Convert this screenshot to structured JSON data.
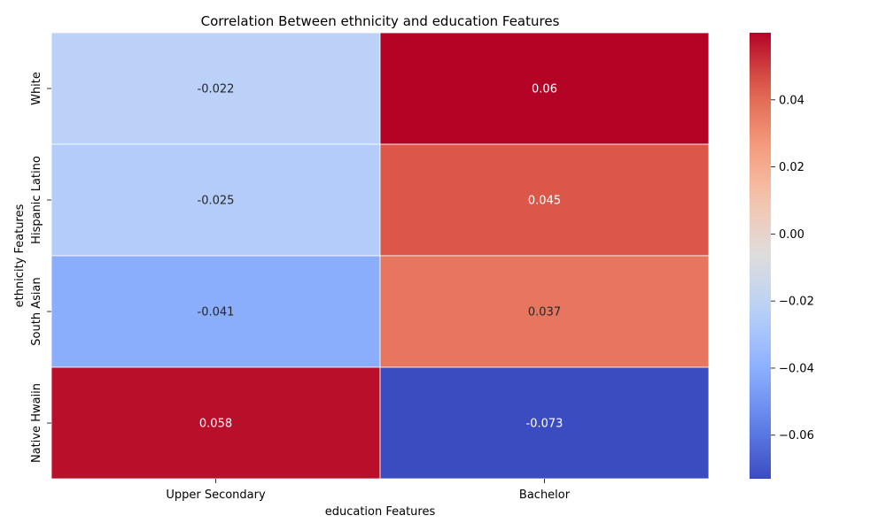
{
  "chart_data": {
    "type": "heatmap",
    "title": "Correlation Between ethnicity and education Features",
    "xlabel": "education Features",
    "ylabel": "ethnicity Features",
    "x_categories": [
      "Upper Secondary",
      "Bachelor"
    ],
    "y_categories": [
      "White",
      "Hispanic Latino",
      "South Asian",
      "Native Hwaiin"
    ],
    "values": [
      [
        -0.022,
        0.06
      ],
      [
        -0.025,
        0.045
      ],
      [
        -0.041,
        0.037
      ],
      [
        0.058,
        -0.073
      ]
    ],
    "value_labels": [
      [
        "-0.022",
        "0.06"
      ],
      [
        "-0.025",
        "0.045"
      ],
      [
        "-0.041",
        "0.037"
      ],
      [
        "0.058",
        "-0.073"
      ]
    ],
    "colormap": "coolwarm",
    "color_range": [
      -0.073,
      0.06
    ],
    "colorbar_ticks": [
      0.04,
      0.02,
      0.0,
      -0.02,
      -0.04,
      -0.06
    ],
    "colorbar_tick_labels": [
      "0.04",
      "0.02",
      "0.00",
      "−0.02",
      "−0.04",
      "−0.06"
    ],
    "grid": false,
    "legend": "colorbar-right"
  }
}
